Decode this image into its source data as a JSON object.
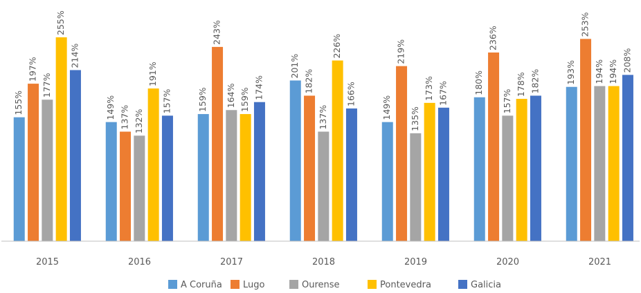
{
  "chart_data": {
    "type": "bar",
    "categories": [
      "2015",
      "2016",
      "2017",
      "2018",
      "2019",
      "2020",
      "2021"
    ],
    "series": [
      {
        "name": "A Coruña",
        "color": "#5b9bd5",
        "values": [
          155,
          149,
          159,
          201,
          149,
          180,
          193
        ],
        "value_labels": [
          "155%",
          "149%",
          "159%",
          "201%",
          "149%",
          "180%",
          "193%"
        ]
      },
      {
        "name": "Lugo",
        "color": "#ed7d31",
        "values": [
          197,
          137,
          243,
          182,
          219,
          236,
          253
        ],
        "value_labels": [
          "197%",
          "137%",
          "243%",
          "182%",
          "219%",
          "236%",
          "253%"
        ]
      },
      {
        "name": "Ourense",
        "color": "#a5a5a5",
        "values": [
          177,
          132,
          164,
          137,
          135,
          157,
          194
        ],
        "value_labels": [
          "177%",
          "132%",
          "164%",
          "137%",
          "135%",
          "157%",
          "194%"
        ]
      },
      {
        "name": "Pontevedra",
        "color": "#ffc000",
        "values": [
          255,
          191,
          159,
          226,
          173,
          178,
          194
        ],
        "value_labels": [
          "255%",
          "191%",
          "159%",
          "226%",
          "173%",
          "178%",
          "194%"
        ]
      },
      {
        "name": "Galicia",
        "color": "#4472c4",
        "values": [
          214,
          157,
          174,
          166,
          167,
          182,
          208
        ],
        "value_labels": [
          "214%",
          "157%",
          "174%",
          "166%",
          "167%",
          "182%",
          "208%"
        ]
      }
    ],
    "legend": "bottom"
  }
}
